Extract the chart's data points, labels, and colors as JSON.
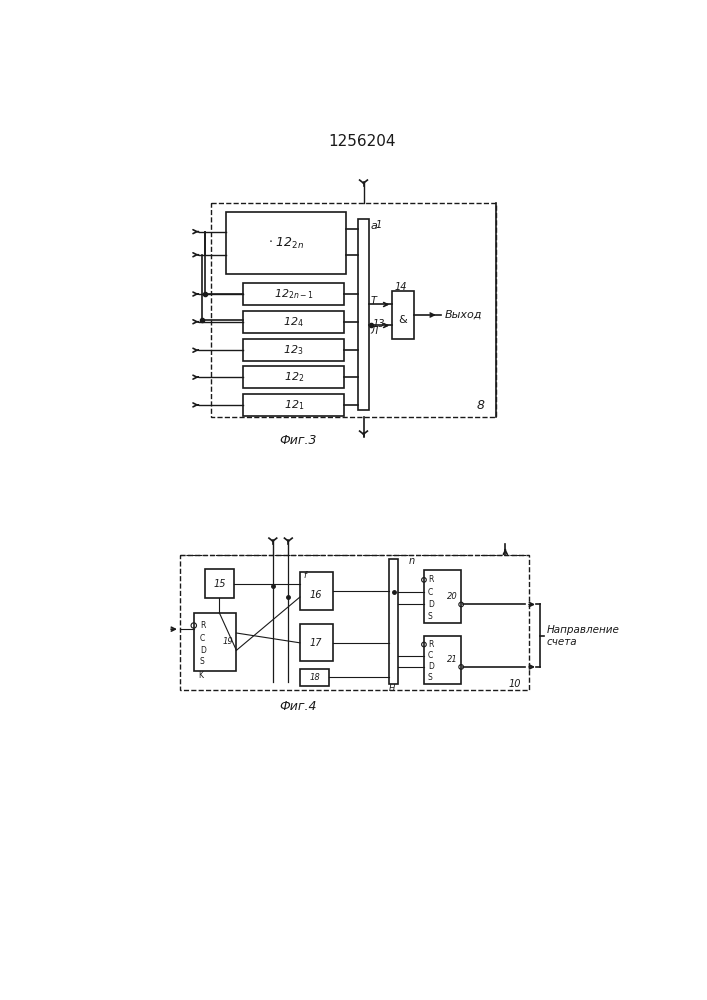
{
  "title": "1256204",
  "fig3_label": "Фиг.3",
  "fig4_label": "Фиг.4",
  "bg_color": "#ffffff",
  "line_color": "#1a1a1a",
  "vykhod": "Выход",
  "napr": "Направление\nсчета"
}
